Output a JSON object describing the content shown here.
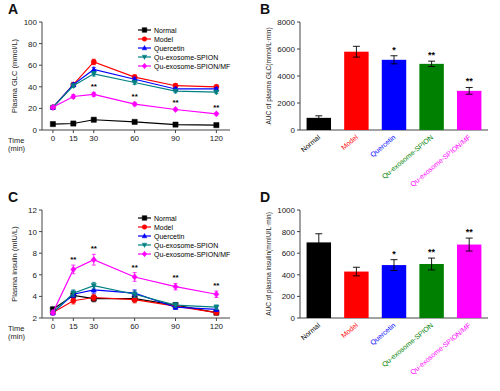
{
  "chart_data": [
    {
      "type": "line",
      "title": "A",
      "xlabel": "Time\n(min)",
      "ylabel": "Plasma GLC (mmol/L)",
      "x": [
        0,
        15,
        30,
        60,
        90,
        120
      ],
      "xlim": [
        -8,
        130
      ],
      "xticks": [
        0,
        15,
        30,
        60,
        90,
        120
      ],
      "ylim": [
        0,
        100
      ],
      "yticks": [
        0,
        20,
        40,
        60,
        80,
        100
      ],
      "legend": "upper right",
      "grid": false,
      "series": [
        {
          "name": "Normal",
          "color": "#000000",
          "marker": "square",
          "values": [
            5.5,
            6.0,
            9.5,
            7.5,
            5.0,
            4.5
          ],
          "errors": [
            0.5,
            0.5,
            0.7,
            0.5,
            0.4,
            0.4
          ]
        },
        {
          "name": "Model",
          "color": "#ff0000",
          "marker": "circle",
          "values": [
            21,
            42,
            63,
            49,
            41,
            40
          ],
          "errors": [
            1.0,
            1.5,
            2.5,
            2.0,
            1.8,
            1.5
          ]
        },
        {
          "name": "Quercetin",
          "color": "#0000ff",
          "marker": "triangle-up",
          "values": [
            21,
            42,
            56,
            47,
            38,
            38
          ],
          "errors": [
            1.0,
            1.5,
            2.0,
            1.8,
            1.5,
            1.3
          ]
        },
        {
          "name": "Qu-exosome-SPION",
          "color": "#008080",
          "marker": "triangle-down",
          "values": [
            21,
            41,
            52,
            44,
            36,
            35
          ],
          "errors": [
            1.0,
            1.5,
            2.0,
            1.8,
            1.5,
            1.3
          ]
        },
        {
          "name": "Qu-exosome-SPION/MF",
          "color": "#ff00ff",
          "marker": "diamond",
          "values": [
            21,
            31,
            33,
            24,
            19,
            15
          ],
          "errors": [
            1.0,
            1.8,
            1.8,
            1.5,
            1.2,
            1.0
          ]
        }
      ],
      "annotations": [
        {
          "series": "Qu-exosome-SPION/MF",
          "x": 30,
          "text": "**"
        },
        {
          "series": "Qu-exosome-SPION/MF",
          "x": 60,
          "text": "**"
        },
        {
          "series": "Qu-exosome-SPION/MF",
          "x": 90,
          "text": "**"
        },
        {
          "series": "Qu-exosome-SPION/MF",
          "x": 120,
          "text": "**"
        }
      ]
    },
    {
      "type": "bar",
      "title": "B",
      "ylabel": "AUC of plasma GLC(mmol/L·min)",
      "categories": [
        "Normal",
        "Model",
        "Quercetin",
        "Qu-exosome-SPION",
        "Qu-exosome-SPION/MF"
      ],
      "values": [
        900,
        5800,
        5200,
        4900,
        2900
      ],
      "errors": [
        150,
        400,
        300,
        200,
        250
      ],
      "colors": [
        "#000000",
        "#ff0000",
        "#0000ff",
        "#008000",
        "#ff00ff"
      ],
      "ylim": [
        0,
        8000
      ],
      "yticks": [
        0,
        2000,
        4000,
        6000,
        8000
      ],
      "grid": false,
      "annotations": [
        {
          "category": "Quercetin",
          "text": "*"
        },
        {
          "category": "Qu-exosome-SPION",
          "text": "**"
        },
        {
          "category": "Qu-exosome-SPION/MF",
          "text": "**"
        }
      ]
    },
    {
      "type": "line",
      "title": "C",
      "xlabel": "Time\n(min)",
      "ylabel": "Plasma insulin (mIU/L)",
      "x": [
        0,
        15,
        30,
        60,
        90,
        120
      ],
      "xlim": [
        -8,
        130
      ],
      "xticks": [
        0,
        15,
        30,
        60,
        90,
        120
      ],
      "ylim": [
        2,
        12
      ],
      "yticks": [
        2,
        4,
        6,
        8,
        10,
        12
      ],
      "legend": "upper right",
      "grid": false,
      "series": [
        {
          "name": "Normal",
          "color": "#000000",
          "marker": "square",
          "values": [
            2.8,
            4.1,
            3.8,
            3.8,
            3.2,
            2.5
          ],
          "errors": [
            0.2,
            0.3,
            0.3,
            0.3,
            0.2,
            0.2
          ]
        },
        {
          "name": "Model",
          "color": "#ff0000",
          "marker": "circle",
          "values": [
            2.5,
            3.6,
            3.9,
            3.7,
            3.1,
            2.5
          ],
          "errors": [
            0.2,
            0.3,
            0.3,
            0.3,
            0.2,
            0.2
          ]
        },
        {
          "name": "Quercetin",
          "color": "#0000ff",
          "marker": "triangle-up",
          "values": [
            2.5,
            4.2,
            4.6,
            4.3,
            3.0,
            2.8
          ],
          "errors": [
            0.2,
            0.3,
            0.3,
            0.3,
            0.2,
            0.2
          ]
        },
        {
          "name": "Qu-exosome-SPION",
          "color": "#008080",
          "marker": "triangle-down",
          "values": [
            2.5,
            4.3,
            5.0,
            4.2,
            3.2,
            3.0
          ],
          "errors": [
            0.2,
            0.3,
            0.3,
            0.3,
            0.2,
            0.2
          ]
        },
        {
          "name": "Qu-exosome-SPION/MF",
          "color": "#ff00ff",
          "marker": "diamond",
          "values": [
            2.5,
            6.5,
            7.4,
            5.8,
            4.9,
            4.2
          ],
          "errors": [
            0.2,
            0.4,
            0.5,
            0.4,
            0.3,
            0.3
          ]
        }
      ],
      "annotations": [
        {
          "series": "Qu-exosome-SPION/MF",
          "x": 15,
          "text": "**"
        },
        {
          "series": "Qu-exosome-SPION/MF",
          "x": 30,
          "text": "**"
        },
        {
          "series": "Qu-exosome-SPION/MF",
          "x": 60,
          "text": "**"
        },
        {
          "series": "Qu-exosome-SPION/MF",
          "x": 90,
          "text": "**"
        },
        {
          "series": "Qu-exosome-SPION/MF",
          "x": 120,
          "text": "**"
        }
      ]
    },
    {
      "type": "bar",
      "title": "D",
      "ylabel": "AUC of plasma insulin(mmIU/L·min)",
      "categories": [
        "Normal",
        "Model",
        "Quercetin",
        "Qu-exosome-SPION",
        "Qu-exosome-SPION/MF"
      ],
      "values": [
        700,
        430,
        490,
        500,
        680
      ],
      "errors": [
        80,
        40,
        50,
        55,
        60
      ],
      "colors": [
        "#000000",
        "#ff0000",
        "#0000ff",
        "#008000",
        "#ff00ff"
      ],
      "ylim": [
        0,
        1000
      ],
      "yticks": [
        0,
        200,
        400,
        600,
        800,
        1000
      ],
      "grid": false,
      "annotations": [
        {
          "category": "Quercetin",
          "text": "*"
        },
        {
          "category": "Qu-exosome-SPION",
          "text": "**"
        },
        {
          "category": "Qu-exosome-SPION/MF",
          "text": "**"
        }
      ]
    }
  ]
}
